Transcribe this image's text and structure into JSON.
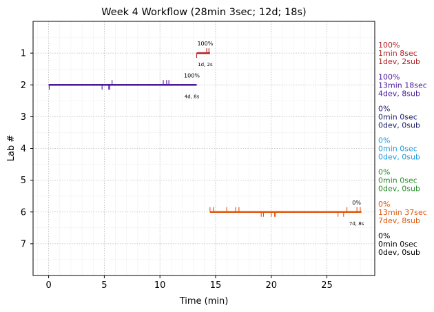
{
  "chart_data": {
    "type": "timeline",
    "title": "Week 4 Workflow (28min 3sec; 12d; 18s)",
    "xlabel": "Time (min)",
    "ylabel": "Lab #",
    "xlim": [
      -1.4,
      29.3
    ],
    "ylim": [
      8.0,
      0.0
    ],
    "xticks": [
      0,
      5,
      10,
      15,
      20,
      25
    ],
    "yticks": [
      1,
      2,
      3,
      4,
      5,
      6,
      7
    ],
    "grid": true,
    "minor_grid": true,
    "labs": [
      {
        "lab": 1,
        "color": "#b22222",
        "start": 13.3,
        "end": 14.5,
        "upper_ticks": [
          14.2,
          14.4
        ],
        "lower_ticks": [
          13.3
        ],
        "pct_label": "100%",
        "count_label": "1d, 2s",
        "side": [
          "100%",
          "1min 8sec",
          "1dev, 2sub"
        ]
      },
      {
        "lab": 2,
        "color": "#4b1a99",
        "start": 0.0,
        "end": 13.3,
        "upper_ticks": [
          5.7,
          10.3,
          10.6,
          10.8
        ],
        "lower_ticks": [
          0.05,
          4.8,
          5.4,
          5.5
        ],
        "pct_label": "100%",
        "count_label": "4d, 8s",
        "side": [
          "100%",
          "13min 18sec",
          "4dev, 8sub"
        ]
      },
      {
        "lab": 3,
        "color": "#1b1b6e",
        "start": null,
        "end": null,
        "upper_ticks": [],
        "lower_ticks": [],
        "pct_label": "",
        "count_label": "",
        "side": [
          "0%",
          "0min 0sec",
          "0dev, 0sub"
        ]
      },
      {
        "lab": 4,
        "color": "#1e9be0",
        "start": null,
        "end": null,
        "upper_ticks": [],
        "lower_ticks": [],
        "pct_label": "",
        "count_label": "",
        "side": [
          "0%",
          "0min 0sec",
          "0dev, 0sub"
        ]
      },
      {
        "lab": 5,
        "color": "#2a8a2a",
        "start": null,
        "end": null,
        "upper_ticks": [],
        "lower_ticks": [],
        "pct_label": "",
        "count_label": "",
        "side": [
          "0%",
          "0min 0sec",
          "0dev, 0sub"
        ]
      },
      {
        "lab": 6,
        "color": "#e0560c",
        "start": 14.5,
        "end": 28.1,
        "upper_ticks": [
          14.5,
          14.8,
          16.0,
          16.8,
          17.1,
          26.8,
          27.7,
          28.0
        ],
        "lower_ticks": [
          19.1,
          19.3,
          20.0,
          20.3,
          20.4,
          26.0,
          26.5
        ],
        "pct_label": "0%",
        "count_label": "7d, 8s",
        "side": [
          "0%",
          "13min 37sec",
          "7dev, 8sub"
        ]
      },
      {
        "lab": 7,
        "color": "#000000",
        "start": null,
        "end": null,
        "upper_ticks": [],
        "lower_ticks": [],
        "pct_label": "",
        "count_label": "",
        "side": [
          "0%",
          "0min 0sec",
          "0dev, 0sub"
        ]
      }
    ]
  }
}
